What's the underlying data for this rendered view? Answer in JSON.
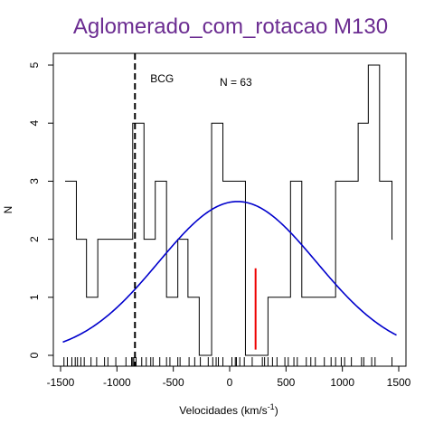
{
  "chart_data": {
    "type": "histogram",
    "title": "Aglomerado_com_rotacao M130",
    "xlabel": "Velocidades  (km/s",
    "xlabel_sup": "-1",
    "xlabel_close": ")",
    "ylabel": "N",
    "xlim": [
      -1550,
      1550
    ],
    "ylim": [
      0,
      5.15
    ],
    "x_ticks": [
      -1500,
      -1000,
      -500,
      0,
      500,
      1000,
      1500
    ],
    "x_tick_labels": [
      "-1500",
      "-1000",
      "-500",
      "0",
      "500",
      "1000",
      "1500"
    ],
    "y_ticks": [
      0,
      1,
      2,
      3,
      4,
      5
    ],
    "y_tick_labels": [
      "0",
      "1",
      "2",
      "3",
      "4",
      "5"
    ],
    "histogram_steps": [
      {
        "x0": -1460,
        "x1": -1360,
        "y": 3
      },
      {
        "x0": -1360,
        "x1": -1270,
        "y": 2
      },
      {
        "x0": -1270,
        "x1": -1170,
        "y": 1
      },
      {
        "x0": -1170,
        "x1": -860,
        "y": 2
      },
      {
        "x0": -860,
        "x1": -760,
        "y": 4
      },
      {
        "x0": -760,
        "x1": -660,
        "y": 2
      },
      {
        "x0": -660,
        "x1": -560,
        "y": 3
      },
      {
        "x0": -560,
        "x1": -460,
        "y": 1
      },
      {
        "x0": -460,
        "x1": -370,
        "y": 2
      },
      {
        "x0": -370,
        "x1": -270,
        "y": 1
      },
      {
        "x0": -270,
        "x1": -160,
        "y": 0
      },
      {
        "x0": -160,
        "x1": -60,
        "y": 4
      },
      {
        "x0": -60,
        "x1": 140,
        "y": 3
      },
      {
        "x0": 140,
        "x1": 340,
        "y": 0
      },
      {
        "x0": 340,
        "x1": 540,
        "y": 1
      },
      {
        "x0": 540,
        "x1": 640,
        "y": 3
      },
      {
        "x0": 640,
        "x1": 940,
        "y": 1
      },
      {
        "x0": 940,
        "x1": 1140,
        "y": 3
      },
      {
        "x0": 1140,
        "x1": 1230,
        "y": 4
      },
      {
        "x0": 1230,
        "x1": 1330,
        "y": 5
      },
      {
        "x0": 1330,
        "x1": 1440,
        "y": 3
      },
      {
        "x0": 1440,
        "x1": 1445,
        "y": 2
      }
    ],
    "gaussian": {
      "mean": 70,
      "sigma": 700,
      "peak": 2.65,
      "x_range": [
        -1480,
        1480
      ],
      "color": "#0000cc"
    },
    "bcg_line": {
      "x": -840,
      "label": "BCG"
    },
    "red_line": {
      "x": 230,
      "y0": 0.1,
      "y1": 1.5,
      "color": "#ee0000"
    },
    "n_label": "N =  63",
    "rug": [
      -1470,
      -1440,
      -1400,
      -1370,
      -1350,
      -1320,
      -1290,
      -1230,
      -1180,
      -1110,
      -1080,
      -1010,
      -920,
      -870,
      -860,
      -850,
      -830,
      -780,
      -740,
      -700,
      -680,
      -620,
      -560,
      -530,
      -460,
      -440,
      -360,
      -310,
      -260,
      -190,
      -150,
      -120,
      -100,
      -60,
      20,
      50,
      60,
      90,
      130,
      200,
      290,
      310,
      340,
      380,
      420,
      490,
      520,
      570,
      600,
      680,
      720,
      760,
      840,
      900,
      940,
      990,
      1020,
      1080,
      1170,
      1190,
      1260,
      1290,
      1440
    ]
  }
}
